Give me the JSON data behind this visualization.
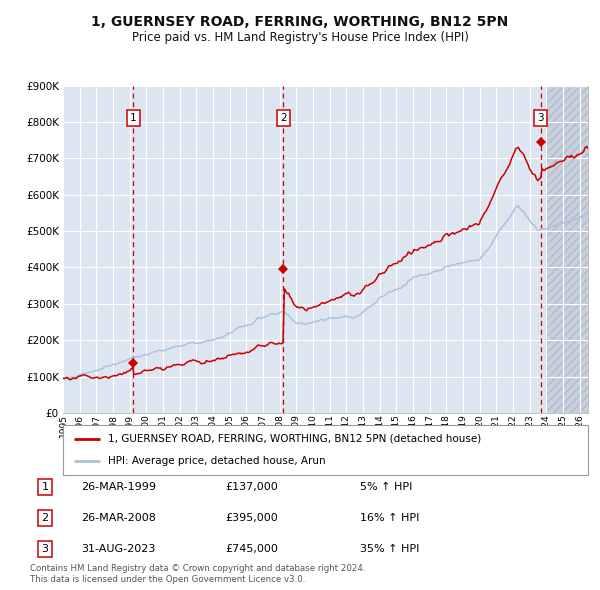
{
  "title": "1, GUERNSEY ROAD, FERRING, WORTHING, BN12 5PN",
  "subtitle": "Price paid vs. HM Land Registry's House Price Index (HPI)",
  "ylim": [
    0,
    900000
  ],
  "yticks": [
    0,
    100000,
    200000,
    300000,
    400000,
    500000,
    600000,
    700000,
    800000,
    900000
  ],
  "ytick_labels": [
    "£0",
    "£100K",
    "£200K",
    "£300K",
    "£400K",
    "£500K",
    "£600K",
    "£700K",
    "£800K",
    "£900K"
  ],
  "xlim_start": 1995.0,
  "xlim_end": 2026.5,
  "xticks": [
    1995,
    1996,
    1997,
    1998,
    1999,
    2000,
    2001,
    2002,
    2003,
    2004,
    2005,
    2006,
    2007,
    2008,
    2009,
    2010,
    2011,
    2012,
    2013,
    2014,
    2015,
    2016,
    2017,
    2018,
    2019,
    2020,
    2021,
    2022,
    2023,
    2024,
    2025,
    2026
  ],
  "bg_color": "#dde5f0",
  "hatch_future_color": "#c8d0de",
  "grid_color": "#ffffff",
  "red_line_color": "#cc0000",
  "blue_line_color": "#aac4dd",
  "dashed_line_color": "#cc0000",
  "marker_color": "#cc0000",
  "sale1_year": 1999.23,
  "sale1_price": 137000,
  "sale2_year": 2008.23,
  "sale2_price": 395000,
  "sale3_year": 2023.66,
  "sale3_price": 745000,
  "legend_label1": "1, GUERNSEY ROAD, FERRING, WORTHING, BN12 5PN (detached house)",
  "legend_label2": "HPI: Average price, detached house, Arun",
  "table_rows": [
    {
      "num": "1",
      "date": "26-MAR-1999",
      "price": "£137,000",
      "hpi": "5% ↑ HPI"
    },
    {
      "num": "2",
      "date": "26-MAR-2008",
      "price": "£395,000",
      "hpi": "16% ↑ HPI"
    },
    {
      "num": "3",
      "date": "31-AUG-2023",
      "price": "£745,000",
      "hpi": "35% ↑ HPI"
    }
  ],
  "footnote1": "Contains HM Land Registry data © Crown copyright and database right 2024.",
  "footnote2": "This data is licensed under the Open Government Licence v3.0."
}
